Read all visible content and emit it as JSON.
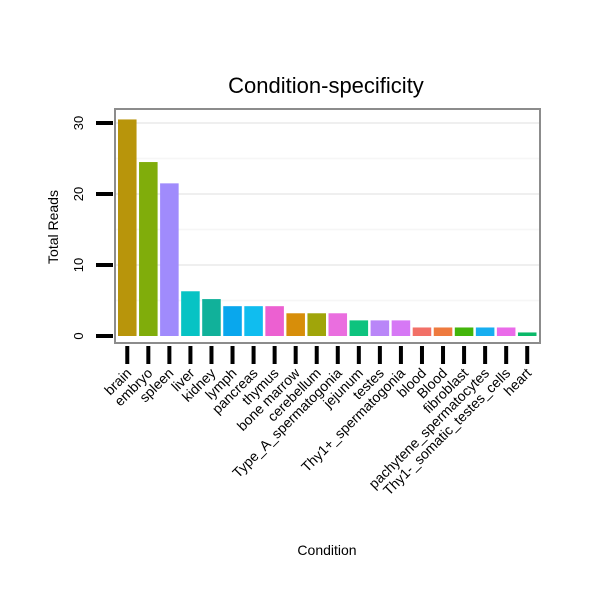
{
  "chart_data": {
    "type": "bar",
    "title": "Condition-specificity",
    "xlabel": "Condition",
    "ylabel": "Total Reads",
    "ylim": [
      0,
      32
    ],
    "yticks": [
      0,
      10,
      20,
      30
    ],
    "categories": [
      "brain",
      "embryo",
      "spleen",
      "liver",
      "kidney",
      "lymph",
      "pancreas",
      "thymus",
      "bone marrow",
      "cerebellum",
      "Type_A_spermatogonia",
      "jejunum",
      "testes",
      "Thy1+_spermatogonia",
      "blood",
      "Blood",
      "fibroblast",
      "pachytene_spermatocytes",
      "Thy1-_somatic_testes_cells",
      "heart"
    ],
    "values": [
      30.5,
      24.5,
      21.5,
      6.3,
      5.2,
      4.2,
      4.2,
      4.2,
      3.2,
      3.2,
      3.2,
      2.2,
      2.2,
      2.2,
      1.2,
      1.2,
      1.2,
      1.2,
      1.2,
      0.5
    ],
    "colors": [
      "#b8950b",
      "#80ad0b",
      "#a08bfc",
      "#07c3c4",
      "#11b19a",
      "#09a7ed",
      "#10bdef",
      "#ec60d1",
      "#d78e0a",
      "#a0a50a",
      "#ea6edf",
      "#0ec37e",
      "#b986f8",
      "#d678f5",
      "#f27067",
      "#ee7a3e",
      "#43b50b",
      "#17aef0",
      "#ea6be9",
      "#0ab969"
    ],
    "grid": true,
    "legend": "none"
  }
}
